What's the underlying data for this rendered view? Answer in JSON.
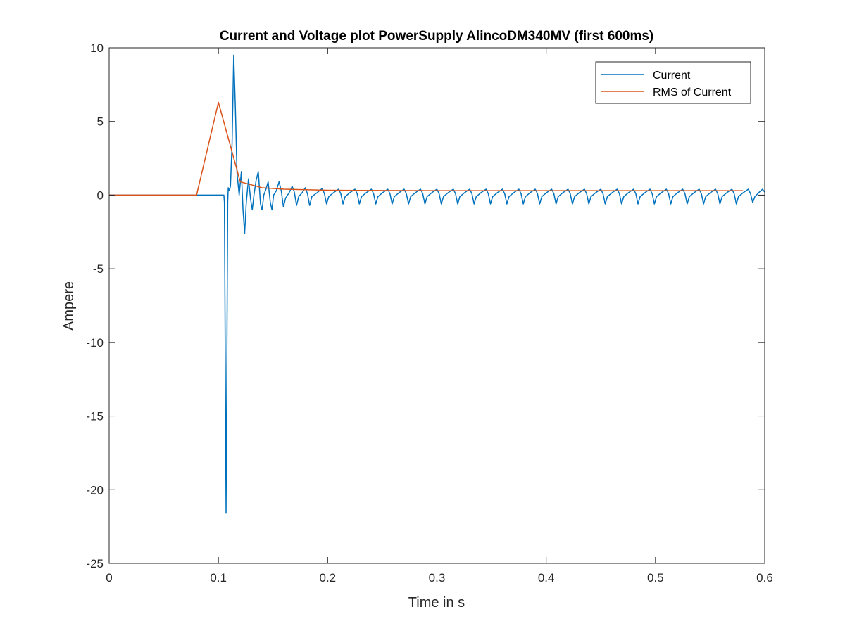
{
  "chart_data": {
    "type": "line",
    "title": "Current and Voltage plot PowerSupply AlincoDM340MV (first 600ms)",
    "xlabel": "Time in s",
    "ylabel": "Ampere",
    "xlim": [
      0,
      0.6
    ],
    "ylim": [
      -25,
      10
    ],
    "xticks": [
      0,
      0.1,
      0.2,
      0.3,
      0.4,
      0.5,
      0.6
    ],
    "xtick_labels": [
      "0",
      "0.1",
      "0.2",
      "0.3",
      "0.4",
      "0.5",
      "0.6"
    ],
    "yticks": [
      -25,
      -20,
      -15,
      -10,
      -5,
      0,
      5,
      10
    ],
    "ytick_labels": [
      "-25",
      "-20",
      "-15",
      "-10",
      "-5",
      "0",
      "5",
      "10"
    ],
    "grid": false,
    "legend_position": "top-right",
    "series": [
      {
        "name": "Current",
        "color": "#0072BD",
        "points": [
          [
            0,
            0
          ],
          [
            0.08,
            0
          ],
          [
            0.1,
            0
          ],
          [
            0.105,
            0
          ],
          [
            0.1055,
            -0.5
          ],
          [
            0.107,
            -21.6
          ],
          [
            0.1085,
            -0.5
          ],
          [
            0.109,
            0.5
          ],
          [
            0.11,
            0.3
          ],
          [
            0.111,
            0.6
          ],
          [
            0.1125,
            3.5
          ],
          [
            0.114,
            9.5
          ],
          [
            0.1155,
            6.0
          ],
          [
            0.117,
            1.5
          ],
          [
            0.119,
            0.0
          ],
          [
            0.121,
            1.6
          ],
          [
            0.1225,
            -1.0
          ],
          [
            0.124,
            -2.6
          ],
          [
            0.1255,
            -0.5
          ],
          [
            0.1275,
            1.1
          ],
          [
            0.1295,
            -0.3
          ],
          [
            0.131,
            -1.0
          ],
          [
            0.1325,
            0.0
          ],
          [
            0.1345,
            1.0
          ],
          [
            0.1365,
            1.6
          ],
          [
            0.1385,
            -0.6
          ],
          [
            0.14,
            -1.0
          ],
          [
            0.1415,
            0.0
          ],
          [
            0.1435,
            0.4
          ],
          [
            0.1455,
            0.9
          ],
          [
            0.1475,
            -0.5
          ],
          [
            0.149,
            -1.0
          ],
          [
            0.1505,
            0.0
          ],
          [
            0.153,
            0.3
          ],
          [
            0.1555,
            0.9
          ],
          [
            0.1575,
            0.3
          ],
          [
            0.1595,
            -0.8
          ],
          [
            0.1615,
            -0.2
          ],
          [
            0.165,
            0.2
          ],
          [
            0.1675,
            0.6
          ],
          [
            0.1695,
            0.2
          ],
          [
            0.1715,
            -0.7
          ],
          [
            0.1735,
            -0.1
          ],
          [
            0.177,
            0.2
          ],
          [
            0.1795,
            0.5
          ],
          [
            0.1815,
            0.1
          ],
          [
            0.1835,
            -0.7
          ],
          [
            0.1855,
            -0.1
          ],
          [
            0.19,
            0.15
          ],
          [
            0.195,
            0.45
          ],
          [
            0.197,
            0.1
          ],
          [
            0.199,
            -0.6
          ],
          [
            0.201,
            -0.1
          ],
          [
            0.205,
            0.15
          ],
          [
            0.21,
            0.4
          ],
          [
            0.212,
            0.1
          ],
          [
            0.214,
            -0.6
          ],
          [
            0.216,
            -0.1
          ],
          [
            0.22,
            0.15
          ],
          [
            0.225,
            0.4
          ],
          [
            0.227,
            0.1
          ],
          [
            0.229,
            -0.6
          ],
          [
            0.231,
            -0.1
          ],
          [
            0.235,
            0.15
          ],
          [
            0.24,
            0.4
          ],
          [
            0.242,
            0.1
          ],
          [
            0.244,
            -0.6
          ],
          [
            0.246,
            -0.1
          ],
          [
            0.25,
            0.15
          ],
          [
            0.255,
            0.4
          ],
          [
            0.257,
            0.1
          ],
          [
            0.259,
            -0.6
          ],
          [
            0.261,
            -0.1
          ],
          [
            0.265,
            0.15
          ],
          [
            0.27,
            0.4
          ],
          [
            0.272,
            0.1
          ],
          [
            0.274,
            -0.6
          ],
          [
            0.276,
            -0.1
          ],
          [
            0.28,
            0.15
          ],
          [
            0.285,
            0.4
          ],
          [
            0.287,
            0.1
          ],
          [
            0.289,
            -0.6
          ],
          [
            0.291,
            -0.1
          ],
          [
            0.295,
            0.15
          ],
          [
            0.3,
            0.4
          ],
          [
            0.302,
            0.1
          ],
          [
            0.304,
            -0.6
          ],
          [
            0.306,
            -0.1
          ],
          [
            0.31,
            0.15
          ],
          [
            0.315,
            0.4
          ],
          [
            0.317,
            0.1
          ],
          [
            0.319,
            -0.6
          ],
          [
            0.321,
            -0.1
          ],
          [
            0.325,
            0.15
          ],
          [
            0.33,
            0.4
          ],
          [
            0.332,
            0.1
          ],
          [
            0.334,
            -0.6
          ],
          [
            0.336,
            -0.1
          ],
          [
            0.34,
            0.15
          ],
          [
            0.345,
            0.4
          ],
          [
            0.347,
            0.1
          ],
          [
            0.349,
            -0.6
          ],
          [
            0.351,
            -0.1
          ],
          [
            0.355,
            0.15
          ],
          [
            0.36,
            0.4
          ],
          [
            0.362,
            0.1
          ],
          [
            0.364,
            -0.6
          ],
          [
            0.366,
            -0.1
          ],
          [
            0.37,
            0.15
          ],
          [
            0.375,
            0.4
          ],
          [
            0.377,
            0.1
          ],
          [
            0.379,
            -0.6
          ],
          [
            0.381,
            -0.1
          ],
          [
            0.385,
            0.15
          ],
          [
            0.39,
            0.4
          ],
          [
            0.392,
            0.1
          ],
          [
            0.394,
            -0.6
          ],
          [
            0.396,
            -0.1
          ],
          [
            0.4,
            0.15
          ],
          [
            0.405,
            0.4
          ],
          [
            0.407,
            0.1
          ],
          [
            0.409,
            -0.6
          ],
          [
            0.411,
            -0.1
          ],
          [
            0.415,
            0.15
          ],
          [
            0.42,
            0.4
          ],
          [
            0.422,
            0.1
          ],
          [
            0.424,
            -0.6
          ],
          [
            0.426,
            -0.1
          ],
          [
            0.43,
            0.15
          ],
          [
            0.435,
            0.4
          ],
          [
            0.437,
            0.1
          ],
          [
            0.439,
            -0.6
          ],
          [
            0.441,
            -0.1
          ],
          [
            0.445,
            0.15
          ],
          [
            0.45,
            0.4
          ],
          [
            0.452,
            0.1
          ],
          [
            0.454,
            -0.6
          ],
          [
            0.456,
            -0.1
          ],
          [
            0.46,
            0.15
          ],
          [
            0.465,
            0.4
          ],
          [
            0.467,
            0.1
          ],
          [
            0.469,
            -0.6
          ],
          [
            0.471,
            -0.1
          ],
          [
            0.475,
            0.15
          ],
          [
            0.48,
            0.4
          ],
          [
            0.482,
            0.1
          ],
          [
            0.484,
            -0.6
          ],
          [
            0.486,
            -0.1
          ],
          [
            0.49,
            0.15
          ],
          [
            0.495,
            0.4
          ],
          [
            0.497,
            0.1
          ],
          [
            0.499,
            -0.6
          ],
          [
            0.501,
            -0.1
          ],
          [
            0.505,
            0.15
          ],
          [
            0.51,
            0.4
          ],
          [
            0.512,
            0.1
          ],
          [
            0.514,
            -0.6
          ],
          [
            0.516,
            -0.1
          ],
          [
            0.52,
            0.15
          ],
          [
            0.525,
            0.4
          ],
          [
            0.527,
            0.1
          ],
          [
            0.529,
            -0.6
          ],
          [
            0.531,
            -0.1
          ],
          [
            0.535,
            0.15
          ],
          [
            0.54,
            0.4
          ],
          [
            0.542,
            0.1
          ],
          [
            0.544,
            -0.6
          ],
          [
            0.546,
            -0.1
          ],
          [
            0.55,
            0.15
          ],
          [
            0.555,
            0.4
          ],
          [
            0.557,
            0.1
          ],
          [
            0.559,
            -0.6
          ],
          [
            0.561,
            -0.1
          ],
          [
            0.565,
            0.15
          ],
          [
            0.57,
            0.4
          ],
          [
            0.572,
            0.1
          ],
          [
            0.574,
            -0.6
          ],
          [
            0.576,
            -0.1
          ],
          [
            0.58,
            0.15
          ],
          [
            0.585,
            0.4
          ],
          [
            0.587,
            0.1
          ],
          [
            0.589,
            -0.5
          ],
          [
            0.591,
            -0.1
          ],
          [
            0.595,
            0.2
          ],
          [
            0.598,
            0.4
          ],
          [
            0.6,
            0.2
          ]
        ]
      },
      {
        "name": "RMS of Current",
        "color": "#D95319",
        "points": [
          [
            0,
            0
          ],
          [
            0.08,
            0
          ],
          [
            0.1,
            6.3
          ],
          [
            0.12,
            0.9
          ],
          [
            0.14,
            0.5
          ],
          [
            0.16,
            0.4
          ],
          [
            0.2,
            0.33
          ],
          [
            0.3,
            0.3
          ],
          [
            0.4,
            0.3
          ],
          [
            0.5,
            0.3
          ],
          [
            0.58,
            0.3
          ]
        ]
      }
    ]
  }
}
